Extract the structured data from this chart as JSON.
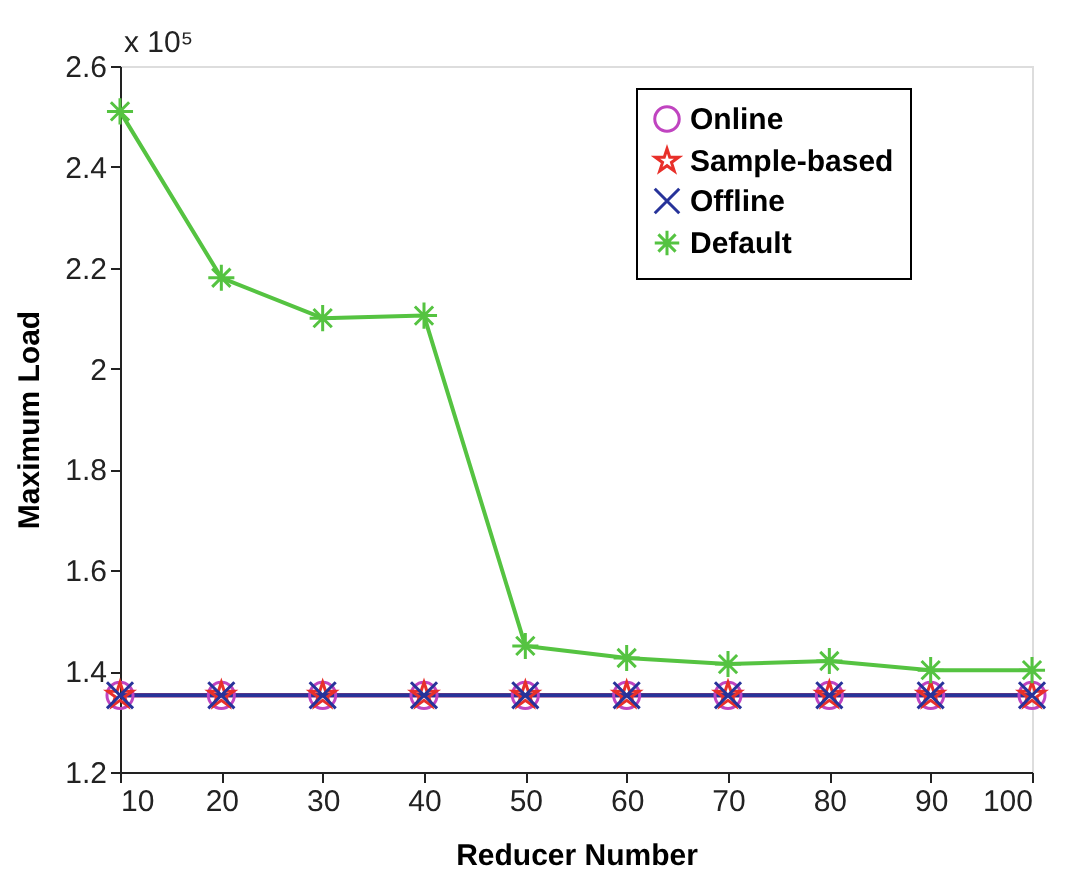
{
  "chart_data": {
    "type": "line",
    "xlabel": "Reducer Number",
    "ylabel": "Maximum Load",
    "annotations": [
      "x 10⁵"
    ],
    "x": [
      10,
      20,
      30,
      40,
      50,
      60,
      70,
      80,
      90,
      100
    ],
    "series": [
      {
        "name": "Online",
        "color": "#c044c0",
        "marker": "circle",
        "values": [
          1.352,
          1.352,
          1.352,
          1.352,
          1.352,
          1.352,
          1.352,
          1.352,
          1.352,
          1.352
        ]
      },
      {
        "name": "Sample-based",
        "color": "#e8302a",
        "marker": "star",
        "values": [
          1.352,
          1.352,
          1.352,
          1.352,
          1.352,
          1.352,
          1.352,
          1.352,
          1.352,
          1.352
        ]
      },
      {
        "name": "Offline",
        "color": "#27339a",
        "marker": "cross",
        "values": [
          1.352,
          1.352,
          1.352,
          1.352,
          1.352,
          1.352,
          1.352,
          1.352,
          1.352,
          1.352
        ]
      },
      {
        "name": "Default",
        "color": "#55c341",
        "marker": "cross",
        "values": [
          2.51,
          2.18,
          2.1,
          2.105,
          1.45,
          1.426,
          1.414,
          1.42,
          1.402,
          1.402
        ]
      }
    ],
    "xlim": [
      10,
      100
    ],
    "xticks": [
      10,
      20,
      30,
      40,
      50,
      60,
      70,
      80,
      90,
      100
    ],
    "ylim": [
      1.2,
      2.6
    ],
    "yticks": [
      1.2,
      1.4,
      1.6,
      1.8,
      2,
      2.2,
      2.4,
      2.6
    ],
    "grid": false,
    "legend": "top right",
    "line_style": "solid"
  }
}
